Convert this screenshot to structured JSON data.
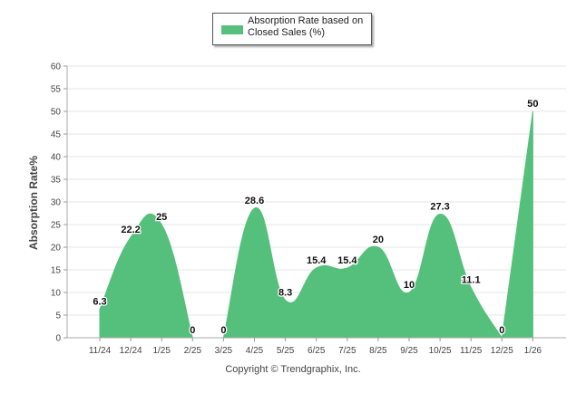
{
  "legend": {
    "label": "Absorption Rate based on Closed Sales (%)"
  },
  "chart_data": {
    "type": "area",
    "title": "",
    "xlabel": "",
    "ylabel": "Absorption Rate%",
    "ylim": [
      0,
      60
    ],
    "yticks": [
      0,
      5,
      10,
      15,
      20,
      25,
      30,
      35,
      40,
      45,
      50,
      55,
      60
    ],
    "grid": true,
    "legend_position": "top-center",
    "series": [
      {
        "name": "Absorption Rate based on Closed Sales (%)",
        "color": "#55c07b",
        "segments": [
          {
            "categories": [
              "11/24",
              "12/24",
              "1/25",
              "2/25"
            ],
            "values": [
              6.3,
              22.2,
              25,
              0
            ],
            "labels": [
              "6.3",
              "22.2",
              "25",
              "0"
            ]
          },
          {
            "categories": [
              "3/25",
              "4/25",
              "5/25",
              "6/25",
              "7/25",
              "8/25",
              "9/25",
              "10/25",
              "11/25",
              "12/25"
            ],
            "values": [
              0,
              28.6,
              8.3,
              15.4,
              15.4,
              20,
              10,
              27.3,
              11.1,
              0
            ],
            "labels": [
              "0",
              "28.6",
              "8.3",
              "15.4",
              "15.4",
              "20",
              "10",
              "27.3",
              "11.1",
              "0"
            ]
          },
          {
            "categories": [
              "12/25",
              "1/26"
            ],
            "values": [
              0,
              50
            ],
            "labels": [
              "0",
              "50"
            ]
          }
        ]
      }
    ],
    "categories": [
      "11/24",
      "12/24",
      "1/25",
      "2/25",
      "3/25",
      "4/25",
      "5/25",
      "6/25",
      "7/25",
      "8/25",
      "9/25",
      "10/25",
      "11/25",
      "12/25",
      "1/26"
    ]
  },
  "footer": {
    "copyright": "Copyright © Trendgraphix, Inc."
  }
}
